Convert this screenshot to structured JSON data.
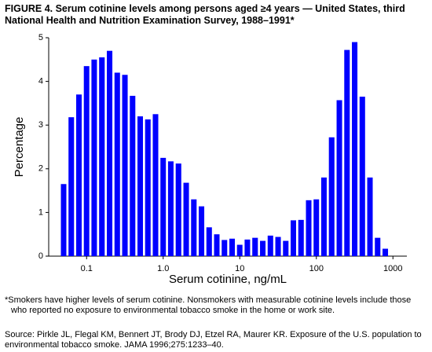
{
  "chart_data": {
    "type": "histogram",
    "title": "FIGURE 4. Serum cotinine levels among persons aged ≥4 years — United States, third National Health and Nutrition Examination Survey, 1988–1991*",
    "xlabel": "Serum cotinine, ng/mL",
    "ylabel": "Percentage",
    "bins": [
      0.0447,
      0.0562,
      0.0708,
      0.0891,
      0.112,
      0.141,
      0.178,
      0.224,
      0.282,
      0.355,
      0.447,
      0.562,
      0.708,
      0.891,
      1.12,
      1.41,
      1.78,
      2.24,
      2.82,
      3.55,
      4.47,
      5.62,
      7.08,
      8.91,
      11.2,
      14.1,
      17.8,
      22.4,
      28.2,
      35.5,
      44.7,
      56.2,
      70.8,
      89.1,
      112,
      141,
      178,
      224,
      282,
      355,
      447,
      562,
      708,
      891
    ],
    "values": [
      1.65,
      3.18,
      3.7,
      4.35,
      4.5,
      4.55,
      4.7,
      4.2,
      4.15,
      3.67,
      3.2,
      3.13,
      3.25,
      2.25,
      2.17,
      2.12,
      1.68,
      1.3,
      1.14,
      0.66,
      0.5,
      0.37,
      0.4,
      0.26,
      0.38,
      0.42,
      0.35,
      0.47,
      0.44,
      0.35,
      0.82,
      0.83,
      1.28,
      1.3,
      1.8,
      2.72,
      3.57,
      4.72,
      4.9,
      3.65,
      1.8,
      0.42,
      0.17
    ],
    "color": "#0000ff",
    "xscale": "log",
    "xlim": [
      0.032,
      1520
    ],
    "xticks": [
      0.1,
      {
        "value": 1,
        "label": "1.0"
      },
      10,
      100,
      1000
    ],
    "ylim": [
      0,
      5
    ],
    "yticks": [
      0,
      1,
      2,
      3,
      4,
      5
    ],
    "footnote": "*Smokers have higher levels of serum cotinine. Nonsmokers with measurable cotinine levels include those who reported no exposure to environmental tobacco smoke in the home or work site.",
    "source": "Source: Pirkle JL, Flegal KM, Bennert JT, Brody DJ, Etzel RA, Maurer KR. Exposure of the U.S. population to environmental tobacco smoke. JAMA 1996;275:1233–40."
  }
}
